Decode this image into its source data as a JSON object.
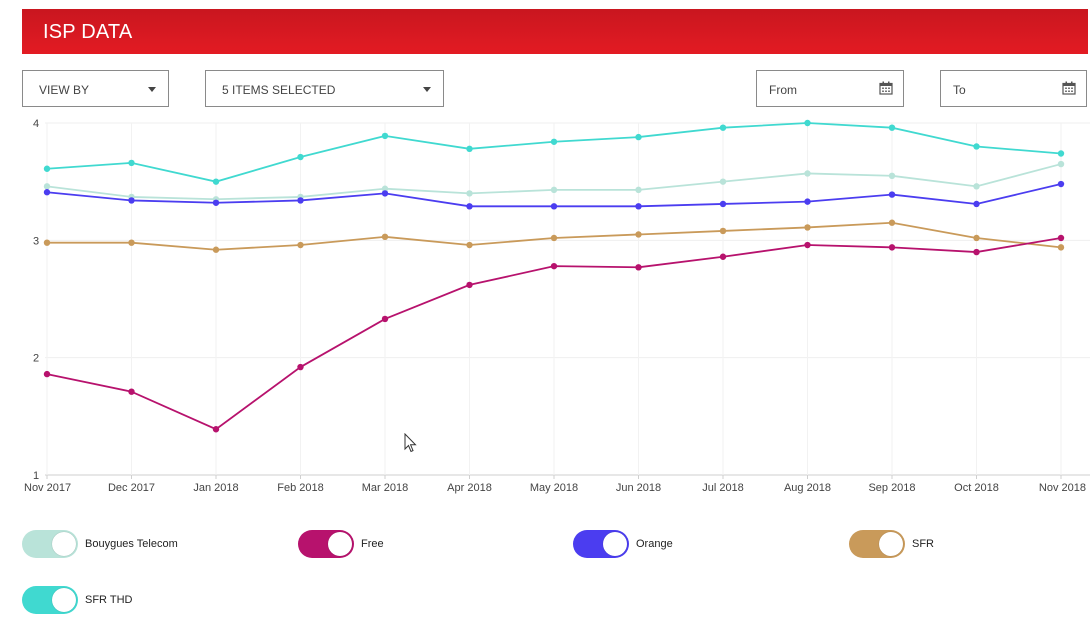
{
  "header": {
    "title": "ISP DATA"
  },
  "controls": {
    "view_by": "VIEW BY",
    "items_selected": "5 ITEMS SELECTED",
    "from": "From",
    "to": "To"
  },
  "icons": {
    "dropdown": "chevron-down-icon",
    "calendar": "calendar-icon",
    "cursor": "mouse-pointer-icon"
  },
  "chart_data": {
    "type": "line",
    "categories": [
      "Nov 2017",
      "Dec 2017",
      "Jan 2018",
      "Feb 2018",
      "Mar 2018",
      "Apr 2018",
      "May 2018",
      "Jun 2018",
      "Jul 2018",
      "Aug 2018",
      "Sep 2018",
      "Oct 2018",
      "Nov 2018"
    ],
    "ylim": [
      1,
      4
    ],
    "yticks": [
      "1",
      "2",
      "3",
      "4"
    ],
    "grid": true,
    "legend_position": "bottom",
    "series": [
      {
        "name": "Bouygues Telecom",
        "color": "#b9e3d9",
        "values": [
          3.46,
          3.37,
          3.35,
          3.37,
          3.44,
          3.4,
          3.43,
          3.43,
          3.5,
          3.57,
          3.55,
          3.46,
          3.65
        ]
      },
      {
        "name": "Free",
        "color": "#b7126d",
        "values": [
          1.86,
          1.71,
          1.39,
          1.92,
          2.33,
          2.62,
          2.78,
          2.77,
          2.86,
          2.96,
          2.94,
          2.9,
          3.02
        ]
      },
      {
        "name": "Orange",
        "color": "#4b3df0",
        "values": [
          3.41,
          3.34,
          3.32,
          3.34,
          3.4,
          3.29,
          3.29,
          3.29,
          3.31,
          3.33,
          3.39,
          3.31,
          3.48
        ]
      },
      {
        "name": "SFR",
        "color": "#c99a5a",
        "values": [
          2.98,
          2.98,
          2.92,
          2.96,
          3.03,
          2.96,
          3.02,
          3.05,
          3.08,
          3.11,
          3.15,
          3.02,
          2.94
        ]
      },
      {
        "name": "SFR THD",
        "color": "#40d9d0",
        "values": [
          3.61,
          3.66,
          3.5,
          3.71,
          3.89,
          3.78,
          3.84,
          3.88,
          3.96,
          4.0,
          3.96,
          3.8,
          3.74
        ]
      }
    ]
  }
}
